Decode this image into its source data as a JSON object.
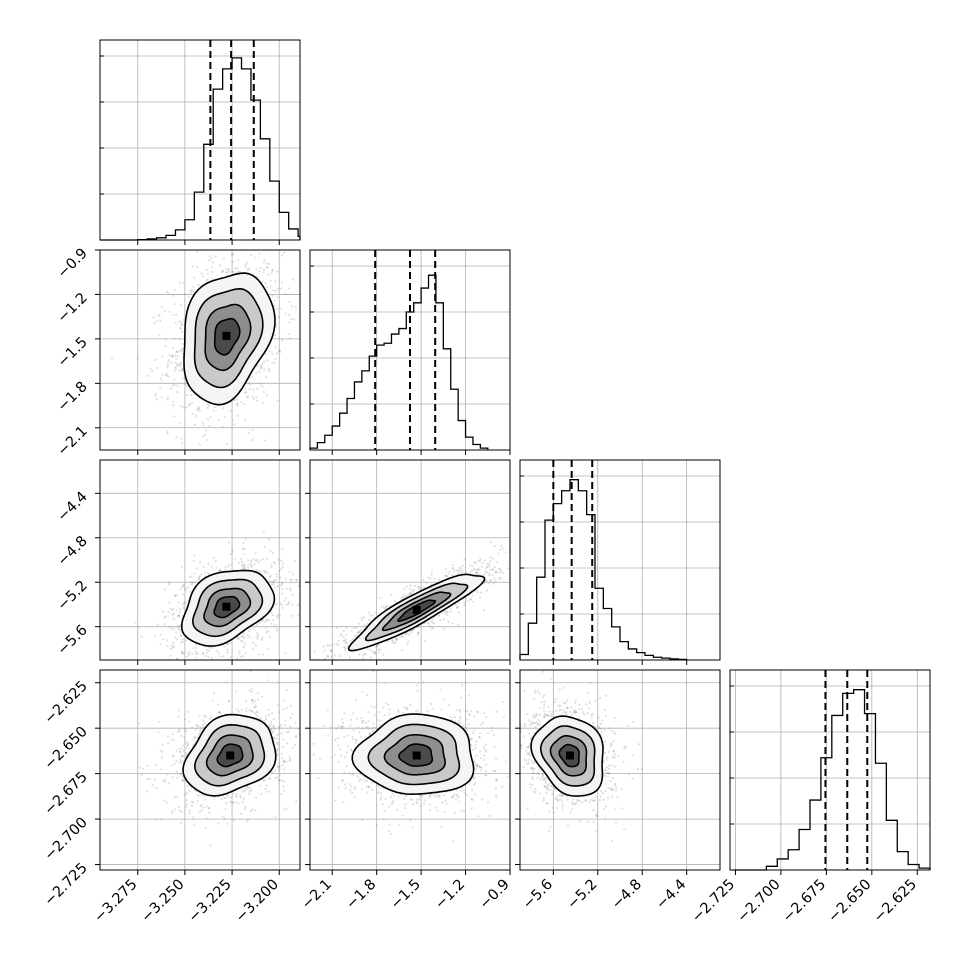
{
  "chart_data": {
    "type": "corner",
    "grid": true,
    "parameters": [
      {
        "index": 0,
        "range": [
          -3.295,
          -3.189
        ],
        "ticks": [
          -3.275,
          -3.25,
          -3.225,
          -3.2
        ],
        "tick_labels": [
          "−3.275",
          "−3.250",
          "−3.225",
          "−3.200"
        ]
      },
      {
        "index": 1,
        "range": [
          -2.25,
          -0.9
        ],
        "ticks": [
          -2.1,
          -1.8,
          -1.5,
          -1.2,
          -0.9
        ],
        "tick_labels": [
          "−2.1",
          "−1.8",
          "−1.5",
          "−1.2",
          "−0.9"
        ]
      },
      {
        "index": 2,
        "range": [
          -5.9,
          -4.1
        ],
        "ticks": [
          -5.6,
          -5.2,
          -4.8,
          -4.4
        ],
        "tick_labels": [
          "−5.6",
          "−5.2",
          "−4.8",
          "−4.4"
        ]
      },
      {
        "index": 3,
        "range": [
          -2.728,
          -2.618
        ],
        "ticks": [
          -2.725,
          -2.7,
          -2.675,
          -2.65,
          -2.625
        ],
        "tick_labels": [
          "−2.725",
          "−2.700",
          "−2.675",
          "−2.650",
          "−2.625"
        ]
      }
    ],
    "marginals": [
      {
        "param": 0,
        "quantiles": [
          -3.2365,
          -3.2255,
          -3.2135
        ],
        "bins": [
          [
            -3.295,
            0.0
          ],
          [
            -3.29,
            0.0
          ],
          [
            -3.285,
            0.0
          ],
          [
            -3.28,
            0.0
          ],
          [
            -3.275,
            0.002
          ],
          [
            -3.27,
            0.006
          ],
          [
            -3.265,
            0.012
          ],
          [
            -3.26,
            0.025
          ],
          [
            -3.255,
            0.055
          ],
          [
            -3.25,
            0.11
          ],
          [
            -3.245,
            0.26
          ],
          [
            -3.24,
            0.52
          ],
          [
            -3.235,
            0.82
          ],
          [
            -3.23,
            0.93
          ],
          [
            -3.225,
            0.99
          ],
          [
            -3.22,
            0.93
          ],
          [
            -3.215,
            0.76
          ],
          [
            -3.21,
            0.55
          ],
          [
            -3.205,
            0.32
          ],
          [
            -3.2,
            0.15
          ],
          [
            -3.195,
            0.06
          ],
          [
            -3.19,
            0.02
          ]
        ]
      },
      {
        "param": 1,
        "quantiles": [
          -1.81,
          -1.575,
          -1.405
        ],
        "bins": [
          [
            -2.25,
            0.01
          ],
          [
            -2.2,
            0.04
          ],
          [
            -2.15,
            0.08
          ],
          [
            -2.1,
            0.13
          ],
          [
            -2.05,
            0.2
          ],
          [
            -2.0,
            0.28
          ],
          [
            -1.95,
            0.37
          ],
          [
            -1.9,
            0.43
          ],
          [
            -1.85,
            0.51
          ],
          [
            -1.8,
            0.57
          ],
          [
            -1.75,
            0.58
          ],
          [
            -1.7,
            0.63
          ],
          [
            -1.65,
            0.66
          ],
          [
            -1.6,
            0.75
          ],
          [
            -1.55,
            0.8
          ],
          [
            -1.5,
            0.88
          ],
          [
            -1.45,
            0.95
          ],
          [
            -1.4,
            0.8
          ],
          [
            -1.35,
            0.55
          ],
          [
            -1.3,
            0.33
          ],
          [
            -1.25,
            0.16
          ],
          [
            -1.2,
            0.07
          ],
          [
            -1.15,
            0.03
          ],
          [
            -1.1,
            0.01
          ]
        ]
      },
      {
        "param": 2,
        "quantiles": [
          -5.6,
          -5.435,
          -5.25
        ],
        "bins": [
          [
            -5.9,
            0.03
          ],
          [
            -5.825,
            0.2
          ],
          [
            -5.75,
            0.45
          ],
          [
            -5.675,
            0.76
          ],
          [
            -5.6,
            0.85
          ],
          [
            -5.525,
            0.92
          ],
          [
            -5.45,
            0.98
          ],
          [
            -5.375,
            0.92
          ],
          [
            -5.3,
            0.79
          ],
          [
            -5.225,
            0.39
          ],
          [
            -5.15,
            0.28
          ],
          [
            -5.075,
            0.18
          ],
          [
            -5.0,
            0.1
          ],
          [
            -4.925,
            0.06
          ],
          [
            -4.85,
            0.04
          ],
          [
            -4.775,
            0.025
          ],
          [
            -4.7,
            0.015
          ],
          [
            -4.625,
            0.01
          ],
          [
            -4.55,
            0.006
          ],
          [
            -4.475,
            0.003
          ]
        ]
      },
      {
        "param": 3,
        "quantiles": [
          -2.6755,
          -2.6635,
          -2.6525
        ],
        "bins": [
          [
            -2.726,
            0.0
          ],
          [
            -2.72,
            0.0
          ],
          [
            -2.714,
            0.0
          ],
          [
            -2.708,
            0.02
          ],
          [
            -2.702,
            0.06
          ],
          [
            -2.696,
            0.11
          ],
          [
            -2.69,
            0.22
          ],
          [
            -2.684,
            0.38
          ],
          [
            -2.678,
            0.61
          ],
          [
            -2.672,
            0.84
          ],
          [
            -2.666,
            0.96
          ],
          [
            -2.66,
            0.98
          ],
          [
            -2.654,
            0.85
          ],
          [
            -2.648,
            0.58
          ],
          [
            -2.642,
            0.27
          ],
          [
            -2.636,
            0.1
          ],
          [
            -2.63,
            0.03
          ],
          [
            -2.624,
            0.01
          ]
        ]
      }
    ],
    "joints": [
      {
        "x": 0,
        "y": 1,
        "center": [
          -3.228,
          -1.48
        ],
        "sigma": [
          0.012,
          0.22
        ],
        "corr": 0.25,
        "levels": [
          0.55,
          1.0,
          1.5,
          2.0
        ]
      },
      {
        "x": 0,
        "y": 2,
        "center": [
          -3.228,
          -5.42
        ],
        "sigma": [
          0.012,
          0.17
        ],
        "corr": 0.35,
        "levels": [
          0.55,
          1.0,
          1.5,
          2.0
        ]
      },
      {
        "x": 1,
        "y": 2,
        "center": [
          -1.53,
          -5.45
        ],
        "sigma": [
          0.22,
          0.17
        ],
        "corr": 0.9,
        "levels": [
          0.55,
          1.0,
          1.5,
          2.0
        ]
      },
      {
        "x": 0,
        "y": 3,
        "center": [
          -3.226,
          -2.665
        ],
        "sigma": [
          0.012,
          0.011
        ],
        "corr": 0.25,
        "levels": [
          0.55,
          1.0,
          1.5,
          2.0
        ]
      },
      {
        "x": 1,
        "y": 3,
        "center": [
          -1.53,
          -2.665
        ],
        "sigma": [
          0.2,
          0.011
        ],
        "corr": 0.0,
        "levels": [
          0.55,
          1.0,
          1.5,
          2.0
        ]
      },
      {
        "x": 2,
        "y": 3,
        "center": [
          -5.45,
          -2.665
        ],
        "sigma": [
          0.16,
          0.011
        ],
        "corr": -0.2,
        "levels": [
          0.55,
          1.0,
          1.5,
          2.0
        ]
      }
    ]
  }
}
